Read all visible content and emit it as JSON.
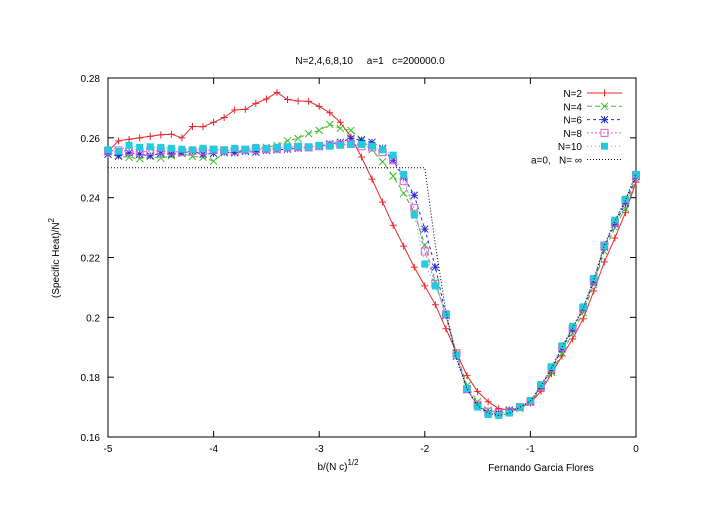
{
  "chart_data": {
    "type": "line",
    "title": "N=2,4,6,8,10     a=1   c=200000.0",
    "xlabel": "b/(N c)",
    "xlabel_sup": "1/2",
    "ylabel": "(Specific Heat)/N",
    "ylabel_sup": "2",
    "annotation": "Fernando Garcia Flores",
    "xlim": [
      -5,
      0
    ],
    "ylim": [
      0.16,
      0.28
    ],
    "xticks": [
      -5,
      -4,
      -3,
      -2,
      -1,
      0
    ],
    "xtick_labels": [
      "-5",
      "-4",
      "-3",
      "-2",
      "-1",
      "0"
    ],
    "yticks": [
      0.16,
      0.18,
      0.2,
      0.22,
      0.24,
      0.26,
      0.28
    ],
    "ytick_labels": [
      "0.16",
      "0.18",
      "0.2",
      "0.22",
      "0.24",
      "0.26",
      "0.28"
    ],
    "grid": false,
    "legend_position": "top-right",
    "series": [
      {
        "name": "N=2",
        "color": "#e8262a",
        "marker": "plus",
        "dash": "",
        "x": [
          -5,
          -4.9,
          -4.8,
          -4.7,
          -4.6,
          -4.5,
          -4.4,
          -4.3,
          -4.2,
          -4.1,
          -4.0,
          -3.9,
          -3.8,
          -3.7,
          -3.6,
          -3.5,
          -3.4,
          -3.3,
          -3.2,
          -3.1,
          -3.0,
          -2.9,
          -2.8,
          -2.7,
          -2.6,
          -2.5,
          -2.4,
          -2.3,
          -2.2,
          -2.1,
          -2.0,
          -1.9,
          -1.8,
          -1.7,
          -1.6,
          -1.5,
          -1.4,
          -1.3,
          -1.2,
          -1.1,
          -1.0,
          -0.9,
          -0.8,
          -0.7,
          -0.6,
          -0.5,
          -0.4,
          -0.3,
          -0.2,
          -0.1,
          0
        ],
        "y": [
          0.2555,
          0.259,
          0.2595,
          0.26,
          0.2605,
          0.261,
          0.2612,
          0.26,
          0.2638,
          0.2637,
          0.2652,
          0.2668,
          0.2693,
          0.2695,
          0.2715,
          0.273,
          0.2752,
          0.2728,
          0.2723,
          0.2722,
          0.2705,
          0.2684,
          0.2652,
          0.2603,
          0.2536,
          0.2462,
          0.2385,
          0.2308,
          0.2238,
          0.2168,
          0.2105,
          0.2042,
          0.1962,
          0.1882,
          0.1805,
          0.1752,
          0.1718,
          0.1695,
          0.169,
          0.1698,
          0.1714,
          0.1753,
          0.1812,
          0.1871,
          0.1928,
          0.1995,
          0.2088,
          0.2185,
          0.2265,
          0.235,
          0.2452
        ]
      },
      {
        "name": "N=4",
        "color": "#3bbf2c",
        "marker": "cross",
        "dash": "5,3",
        "x": [
          -5,
          -4.9,
          -4.8,
          -4.7,
          -4.6,
          -4.5,
          -4.4,
          -4.3,
          -4.2,
          -4.1,
          -4.0,
          -3.9,
          -3.8,
          -3.7,
          -3.6,
          -3.5,
          -3.4,
          -3.3,
          -3.2,
          -3.1,
          -3.0,
          -2.9,
          -2.8,
          -2.7,
          -2.6,
          -2.5,
          -2.4,
          -2.3,
          -2.2,
          -2.1,
          -2.0,
          -1.9,
          -1.8,
          -1.7,
          -1.6,
          -1.5,
          -1.4,
          -1.3,
          -1.2,
          -1.1,
          -1.0,
          -0.9,
          -0.8,
          -0.7,
          -0.6,
          -0.5,
          -0.4,
          -0.3,
          -0.2,
          -0.1,
          0
        ],
        "y": [
          0.2555,
          0.2538,
          0.2535,
          0.253,
          0.2538,
          0.2532,
          0.254,
          0.2548,
          0.2538,
          0.2535,
          0.2522,
          0.255,
          0.2552,
          0.2555,
          0.2562,
          0.2568,
          0.2575,
          0.259,
          0.2598,
          0.2614,
          0.2625,
          0.2645,
          0.2632,
          0.2625,
          0.2595,
          0.256,
          0.252,
          0.2472,
          0.2415,
          0.2352,
          0.2242,
          0.2118,
          0.2008,
          0.188,
          0.1772,
          0.1718,
          0.169,
          0.168,
          0.1685,
          0.1695,
          0.1716,
          0.1762,
          0.1816,
          0.1881,
          0.1946,
          0.2017,
          0.211,
          0.222,
          0.23,
          0.2364,
          0.2462
        ]
      },
      {
        "name": "N=6",
        "color": "#2b2bd6",
        "marker": "star",
        "dash": "3,3",
        "x": [
          -5,
          -4.9,
          -4.8,
          -4.7,
          -4.6,
          -4.5,
          -4.4,
          -4.3,
          -4.2,
          -4.1,
          -4.0,
          -3.9,
          -3.8,
          -3.7,
          -3.6,
          -3.5,
          -3.4,
          -3.3,
          -3.2,
          -3.1,
          -3.0,
          -2.9,
          -2.8,
          -2.7,
          -2.6,
          -2.5,
          -2.4,
          -2.3,
          -2.2,
          -2.1,
          -2.0,
          -1.9,
          -1.8,
          -1.7,
          -1.6,
          -1.5,
          -1.4,
          -1.3,
          -1.2,
          -1.1,
          -1.0,
          -0.9,
          -0.8,
          -0.7,
          -0.6,
          -0.5,
          -0.4,
          -0.3,
          -0.2,
          -0.1,
          0
        ],
        "y": [
          0.2545,
          0.254,
          0.255,
          0.2545,
          0.254,
          0.2548,
          0.2545,
          0.255,
          0.2555,
          0.2545,
          0.2548,
          0.2552,
          0.255,
          0.2555,
          0.2552,
          0.2558,
          0.256,
          0.2562,
          0.2565,
          0.2568,
          0.2572,
          0.258,
          0.2585,
          0.2598,
          0.2592,
          0.2585,
          0.2565,
          0.2525,
          0.247,
          0.2408,
          0.2295,
          0.2168,
          0.2006,
          0.187,
          0.1758,
          0.1705,
          0.168,
          0.1678,
          0.169,
          0.17,
          0.1718,
          0.177,
          0.1825,
          0.1895,
          0.1958,
          0.203,
          0.2118,
          0.2235,
          0.2312,
          0.238,
          0.247
        ]
      },
      {
        "name": "N=8",
        "color": "#e05fd8",
        "marker": "square-open",
        "dash": "2,2",
        "x": [
          -5,
          -4.9,
          -4.8,
          -4.7,
          -4.6,
          -4.5,
          -4.4,
          -4.3,
          -4.2,
          -4.1,
          -4.0,
          -3.9,
          -3.8,
          -3.7,
          -3.6,
          -3.5,
          -3.4,
          -3.3,
          -3.2,
          -3.1,
          -3.0,
          -2.9,
          -2.8,
          -2.7,
          -2.6,
          -2.5,
          -2.4,
          -2.3,
          -2.2,
          -2.1,
          -2.0,
          -1.9,
          -1.8,
          -1.7,
          -1.6,
          -1.5,
          -1.4,
          -1.3,
          -1.2,
          -1.1,
          -1.0,
          -0.9,
          -0.8,
          -0.7,
          -0.6,
          -0.5,
          -0.4,
          -0.3,
          -0.2,
          -0.1,
          0
        ],
        "y": [
          0.2555,
          0.2558,
          0.2555,
          0.2552,
          0.2556,
          0.2558,
          0.2555,
          0.2552,
          0.2556,
          0.2557,
          0.256,
          0.2558,
          0.2556,
          0.256,
          0.2562,
          0.2562,
          0.2565,
          0.2568,
          0.257,
          0.2568,
          0.2572,
          0.2575,
          0.2578,
          0.258,
          0.2572,
          0.2568,
          0.2552,
          0.2525,
          0.2455,
          0.2365,
          0.222,
          0.2112,
          0.201,
          0.188,
          0.176,
          0.1708,
          0.1685,
          0.168,
          0.1685,
          0.17,
          0.1718,
          0.1768,
          0.183,
          0.19,
          0.1962,
          0.203,
          0.2125,
          0.224,
          0.2318,
          0.239,
          0.2475
        ]
      },
      {
        "name": "N=10",
        "color": "#22ccdd",
        "marker": "square-filled",
        "dash": "1,3",
        "x": [
          -5,
          -4.9,
          -4.8,
          -4.7,
          -4.6,
          -4.5,
          -4.4,
          -4.3,
          -4.2,
          -4.1,
          -4.0,
          -3.9,
          -3.8,
          -3.7,
          -3.6,
          -3.5,
          -3.4,
          -3.3,
          -3.2,
          -3.1,
          -3.0,
          -2.9,
          -2.8,
          -2.7,
          -2.6,
          -2.5,
          -2.4,
          -2.3,
          -2.2,
          -2.1,
          -2.0,
          -1.9,
          -1.8,
          -1.7,
          -1.6,
          -1.5,
          -1.4,
          -1.3,
          -1.2,
          -1.1,
          -1.0,
          -0.9,
          -0.8,
          -0.7,
          -0.6,
          -0.5,
          -0.4,
          -0.3,
          -0.2,
          -0.1,
          0
        ],
        "y": [
          0.256,
          0.2555,
          0.2575,
          0.2568,
          0.257,
          0.2568,
          0.2565,
          0.2562,
          0.256,
          0.2565,
          0.2562,
          0.256,
          0.2565,
          0.2562,
          0.2568,
          0.2565,
          0.2568,
          0.257,
          0.2572,
          0.257,
          0.2575,
          0.2572,
          0.2575,
          0.2578,
          0.2578,
          0.2572,
          0.256,
          0.2542,
          0.2478,
          0.2342,
          0.2178,
          0.2105,
          0.201,
          0.1872,
          0.1762,
          0.17,
          0.1675,
          0.1672,
          0.168,
          0.17,
          0.1722,
          0.1775,
          0.1835,
          0.1905,
          0.197,
          0.2035,
          0.213,
          0.224,
          0.2325,
          0.2395,
          0.2478
        ]
      },
      {
        "name": "a=0,   N= ∞",
        "color": "#000000",
        "marker": "none",
        "dash": "1,2",
        "x": [
          -5,
          -2.0,
          -1.9,
          -1.8,
          -1.7,
          -1.6,
          -1.5,
          -1.4,
          -1.3,
          -1.2,
          -1.1,
          -1.0,
          -0.9,
          -0.8,
          -0.7,
          -0.6,
          -0.5,
          -0.4,
          -0.3,
          -0.2,
          -0.1,
          0
        ],
        "y": [
          0.25,
          0.25,
          0.224,
          0.202,
          0.186,
          0.1762,
          0.1705,
          0.168,
          0.1672,
          0.168,
          0.17,
          0.172,
          0.177,
          0.183,
          0.19,
          0.1965,
          0.203,
          0.2125,
          0.224,
          0.232,
          0.239,
          0.248
        ]
      }
    ]
  }
}
